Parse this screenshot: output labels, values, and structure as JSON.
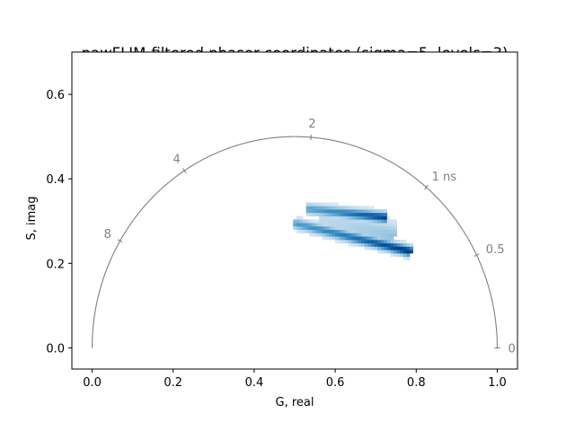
{
  "chart_data": {
    "type": "heatmap",
    "title": "pawFLIM-filtered phasor coordinates (sigma=5, levels=3)",
    "xlabel": "G, real",
    "ylabel": "S, imag",
    "xlim": [
      -0.05,
      1.05
    ],
    "ylim": [
      -0.05,
      0.7
    ],
    "xticks": [
      0.0,
      0.2,
      0.4,
      0.6,
      0.8,
      1.0
    ],
    "xtick_labels": [
      "0.0",
      "0.2",
      "0.4",
      "0.6",
      "0.8",
      "1.0"
    ],
    "yticks": [
      0.0,
      0.2,
      0.4,
      0.6
    ],
    "ytick_labels": [
      "0.0",
      "0.2",
      "0.4",
      "0.6"
    ],
    "grid": false,
    "colormap": "Blues",
    "universal_circle": {
      "center": [
        0.5,
        0.0
      ],
      "radius": 0.5,
      "color": "#808080"
    },
    "lifetime_markers": [
      {
        "label": "0",
        "g": 1.0,
        "s": 0.0
      },
      {
        "label": "0.5",
        "g": 0.9492,
        "s": 0.2195
      },
      {
        "label": "1 ns",
        "g": 0.8249,
        "s": 0.3802
      },
      {
        "label": "2",
        "g": 0.5402,
        "s": 0.4984
      },
      {
        "label": "4",
        "g": 0.2277,
        "s": 0.4193
      },
      {
        "label": "8",
        "g": 0.0688,
        "s": 0.2533
      }
    ],
    "density_ridges": [
      {
        "g_start": 0.53,
        "s_start": 0.325,
        "g_end": 0.72,
        "s_end": 0.305,
        "peak": 0.95
      },
      {
        "g_start": 0.5,
        "s_start": 0.29,
        "g_end": 0.78,
        "s_end": 0.225,
        "peak": 1.0
      }
    ],
    "density_smear": {
      "g_start": 0.56,
      "s_start": 0.3,
      "g_end": 0.74,
      "s_end": 0.26,
      "peak": 0.35
    }
  }
}
